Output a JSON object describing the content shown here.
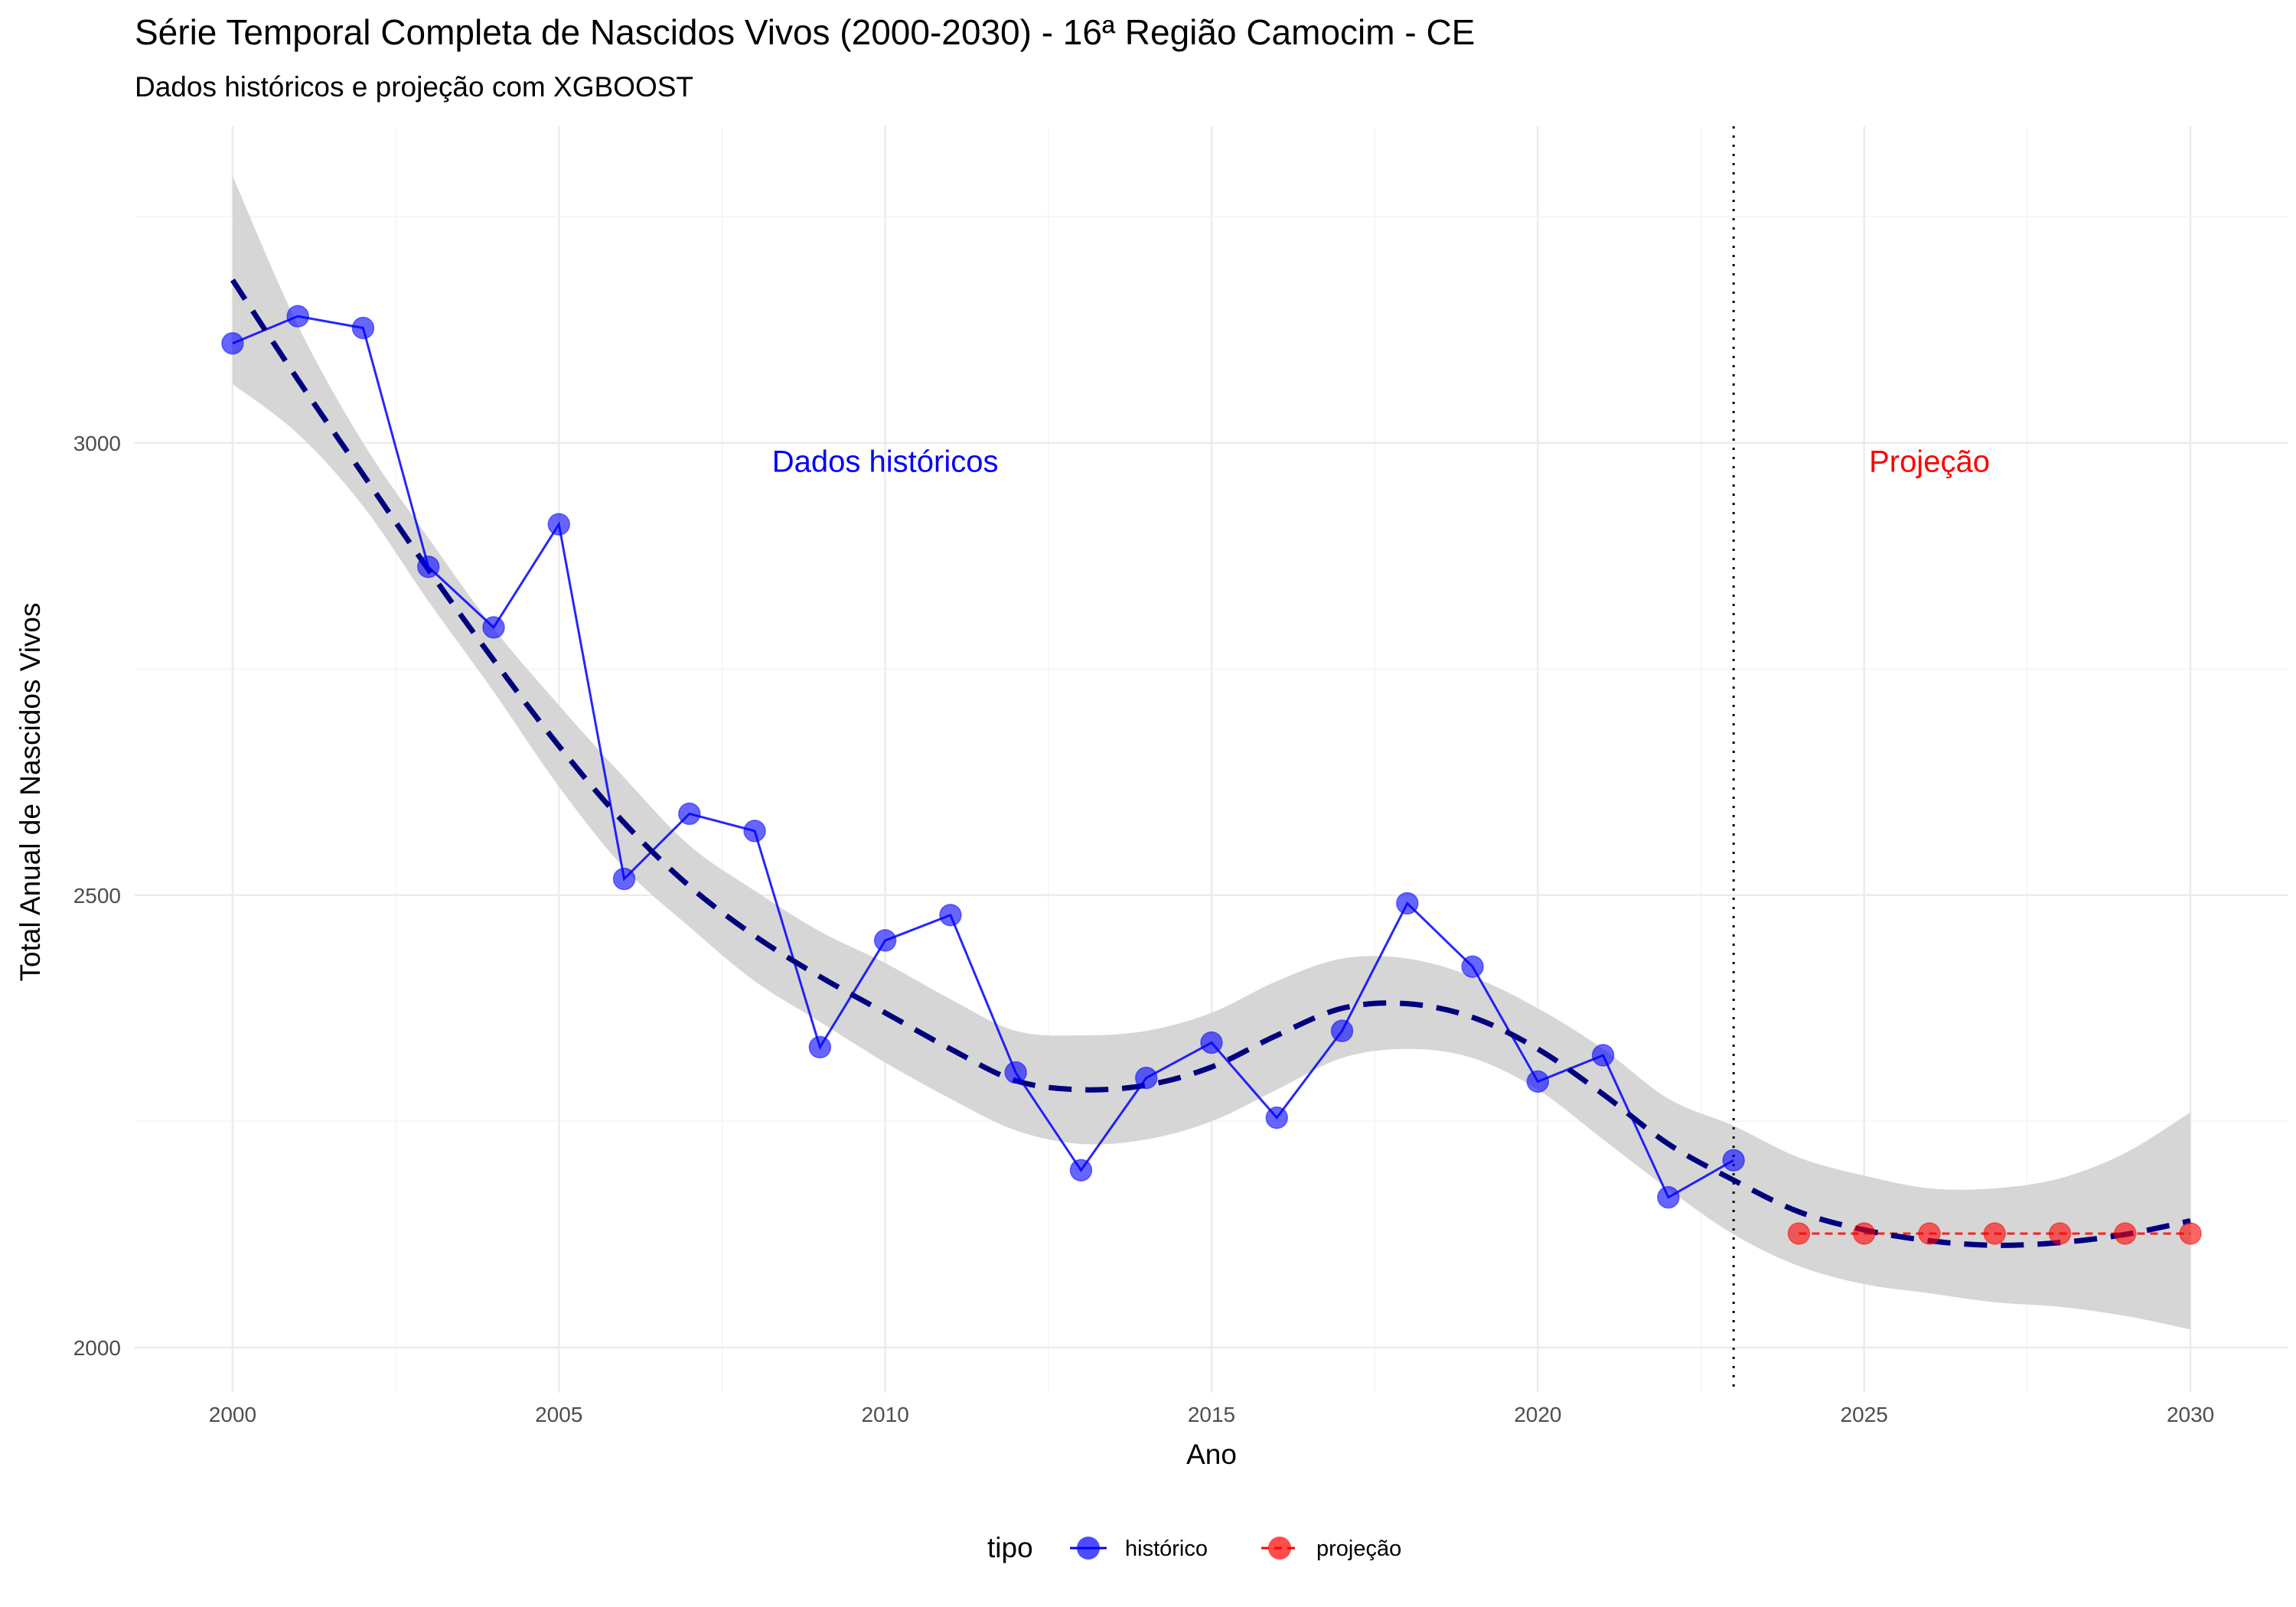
{
  "chart_data": {
    "type": "line",
    "title": "Série Temporal Completa de Nascidos Vivos (2000-2030) -  16ª Região Camocim - CE",
    "subtitle": "Dados históricos e projeção com XGBOOST",
    "xlabel": "Ano",
    "ylabel": "Total Anual de Nascidos Vivos",
    "xlim": [
      1998.5,
      2031.5
    ],
    "ylim": [
      1950,
      3350
    ],
    "x_ticks": [
      2000,
      2005,
      2010,
      2015,
      2020,
      2025,
      2030
    ],
    "y_ticks": [
      2000,
      2500,
      3000
    ],
    "grid": true,
    "vline_x": 2023,
    "annotations": [
      {
        "text": "Dados históricos",
        "x": 2010,
        "y": 2980,
        "color": "#0000FF"
      },
      {
        "text": "Projeção",
        "x": 2026,
        "y": 2980,
        "color": "#FF0000"
      }
    ],
    "legend": {
      "title": "tipo",
      "position": "bottom",
      "entries": [
        {
          "label": "histórico",
          "color": "#0000FF"
        },
        {
          "label": "projeção",
          "color": "#FF0000"
        }
      ]
    },
    "series": [
      {
        "name": "histórico",
        "color": "#0000FF",
        "x": [
          2000,
          2001,
          2002,
          2003,
          2004,
          2005,
          2006,
          2007,
          2008,
          2009,
          2010,
          2011,
          2012,
          2013,
          2014,
          2015,
          2016,
          2017,
          2018,
          2019,
          2020,
          2021,
          2022,
          2023
        ],
        "y": [
          3110,
          3140,
          3127,
          2863,
          2796,
          2910,
          2518,
          2590,
          2571,
          2332,
          2450,
          2478,
          2304,
          2196,
          2298,
          2337,
          2254,
          2350,
          2491,
          2421,
          2294,
          2323,
          2166,
          2207
        ]
      },
      {
        "name": "projeção",
        "color": "#FF0000",
        "x": [
          2024,
          2025,
          2026,
          2027,
          2028,
          2029,
          2030
        ],
        "y": [
          2126,
          2126,
          2126,
          2126,
          2126,
          2126,
          2126
        ]
      }
    ],
    "trend": {
      "color": "#00007F",
      "band_color": "#D4D4D4",
      "x": [
        2000,
        2001,
        2002,
        2003,
        2004,
        2005,
        2006,
        2007,
        2008,
        2009,
        2010,
        2011,
        2012,
        2013,
        2014,
        2015,
        2016,
        2017,
        2018,
        2019,
        2020,
        2021,
        2022,
        2023,
        2024,
        2025,
        2026,
        2027,
        2028,
        2029,
        2030
      ],
      "y": [
        3180,
        3070,
        2965,
        2860,
        2760,
        2665,
        2580,
        2510,
        2455,
        2410,
        2370,
        2330,
        2295,
        2285,
        2290,
        2310,
        2345,
        2375,
        2380,
        2365,
        2330,
        2280,
        2225,
        2185,
        2150,
        2130,
        2118,
        2113,
        2116,
        2125,
        2140
      ],
      "lower": [
        3065,
        3010,
        2930,
        2825,
        2725,
        2620,
        2530,
        2465,
        2405,
        2360,
        2315,
        2275,
        2240,
        2225,
        2230,
        2250,
        2285,
        2320,
        2330,
        2320,
        2285,
        2230,
        2175,
        2125,
        2090,
        2070,
        2060,
        2050,
        2045,
        2035,
        2020
      ],
      "upper": [
        3295,
        3130,
        3000,
        2895,
        2795,
        2710,
        2630,
        2555,
        2505,
        2460,
        2425,
        2385,
        2350,
        2345,
        2350,
        2370,
        2405,
        2430,
        2430,
        2410,
        2375,
        2330,
        2275,
        2245,
        2210,
        2190,
        2176,
        2176,
        2187,
        2215,
        2260
      ]
    }
  }
}
